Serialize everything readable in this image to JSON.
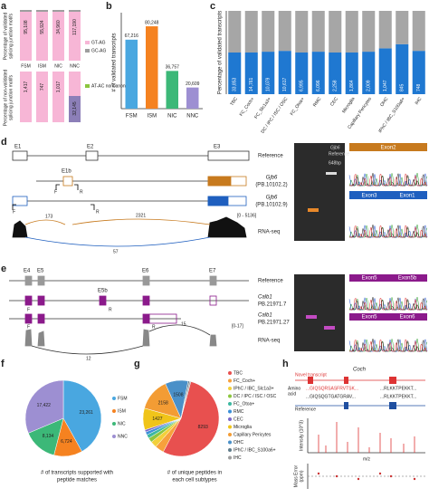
{
  "panel_labels": [
    "a",
    "b",
    "c",
    "d",
    "e",
    "f",
    "g",
    "h"
  ],
  "panel_a": {
    "categories": [
      "FSM",
      "ISM",
      "NIC",
      "NNC"
    ],
    "y_label_top": [
      "Percentage of validated",
      "splicing junction motifs"
    ],
    "y_label_bottom": [
      "Percentage of non-validated",
      "splicing junction motifs"
    ],
    "validated_labels": [
      "95,108",
      "55,924",
      "34,960",
      "117,190"
    ],
    "nonvalidated_labels": [
      "1,417",
      "747",
      "1,017",
      "32,145"
    ],
    "legend_top": [
      "GT-AG",
      "GC-AG"
    ],
    "legend_bottom": [
      "AT-AC noncanonical"
    ]
  },
  "chart_data": [
    {
      "type": "bar",
      "y_label": "# of validated transcripts",
      "categories": [
        "FSM",
        "ISM",
        "NIC",
        "NNC"
      ],
      "values": [
        67216,
        80248,
        36757,
        20609
      ],
      "value_labels": [
        "67,216",
        "80,248",
        "36,757",
        "20,609"
      ],
      "colors": [
        "#49a7e0",
        "#f58220",
        "#3cb878",
        "#9d8fd2"
      ],
      "ylim": [
        0,
        90000
      ]
    },
    {
      "type": "stacked_bar",
      "y_label": "Percentage of validated transcripts",
      "categories": [
        "TBC",
        "FC_Coch+",
        "FC_Slc1a3+",
        "DC / IPC / ISC / OSC",
        "FC_Otoa+",
        "RMC",
        "CEC",
        "Microglia",
        "Capillary Pericytes",
        "OHC",
        "IPhC / IBC_S100a6+",
        "IHC"
      ],
      "series": [
        {
          "name": "validated",
          "color": "#1f78d1",
          "values": [
            50,
            50,
            51,
            52,
            50,
            51,
            50,
            50,
            51,
            55,
            60,
            52
          ]
        },
        {
          "name": "non-validated",
          "color": "#a6a6a6",
          "values": [
            50,
            50,
            49,
            48,
            50,
            49,
            50,
            50,
            49,
            45,
            40,
            48
          ]
        }
      ],
      "annotations": [
        "33,853",
        "14,761",
        "10,079",
        "10,617",
        "6,995",
        "6,096",
        "2,258",
        "1,864",
        "2,009",
        "1,047",
        "845",
        "748"
      ],
      "ylim": [
        0,
        100
      ]
    },
    {
      "type": "pie",
      "title": [
        "# of transcripts supported with",
        "peptide matches"
      ],
      "categories": [
        "FSM",
        "ISM",
        "NIC",
        "NNC"
      ],
      "values": [
        23261,
        6724,
        8134,
        17422
      ],
      "value_labels": [
        "23,261",
        "6,724",
        "8,134",
        "17,422"
      ],
      "colors": [
        "#49a7e0",
        "#f58220",
        "#3cb878",
        "#9d8fd2"
      ]
    },
    {
      "type": "pie",
      "title": [
        "# of unique peptides in",
        "each cell subtypes"
      ],
      "categories": [
        "TBC",
        "FC_Coch+",
        "IPhC / IBC_Slc1a3+",
        "DC / IPC / ISC / OSC",
        "FC_Otoa+",
        "RMC",
        "CEC",
        "Microglia",
        "Capillary Pericytes",
        "OHC",
        "IPhC / IBC_S100a6+",
        "IHC"
      ],
      "values": [
        8293,
        588,
        416,
        300,
        250,
        200,
        150,
        1427,
        2158,
        1508,
        100,
        80
      ],
      "value_labels": [
        "8293",
        null,
        null,
        null,
        null,
        null,
        null,
        "1427",
        "2158",
        "1508",
        null,
        null
      ],
      "colors": [
        "#e8504f",
        "#f7a13c",
        "#f2d03b",
        "#8cc63f",
        "#3cb8a0",
        "#3a8fd8",
        "#7b68c8",
        "#f0c419",
        "#f39c34",
        "#4a90c8",
        "#607d8b",
        "#9e9e9e"
      ]
    }
  ],
  "panel_d": {
    "exons": [
      "E1",
      "E2",
      "E3",
      "E1b"
    ],
    "reference": "Reference",
    "primers": [
      "F",
      "R"
    ],
    "gene": "Gjb6",
    "iso1": "(PB.10102.2)",
    "iso2": "(PB.10102.9)",
    "junctions": [
      "173",
      "2321",
      "57"
    ],
    "range": "[0 - 5136]",
    "rnaseq": "RNA-seq",
    "gel": [
      "Gjb6",
      "Reference",
      "648bp"
    ],
    "seq": [
      "Exon2",
      "Exon3",
      "Exon1"
    ]
  },
  "panel_e": {
    "exons": [
      "E4",
      "E5",
      "E6",
      "E7",
      "E5b"
    ],
    "reference": "Reference",
    "primers": [
      "F",
      "R"
    ],
    "iso1": [
      "Calb1",
      "PB.21971.7"
    ],
    "iso2": [
      "Calb1",
      "PB.21971.27"
    ],
    "junctions": [
      "12",
      "15"
    ],
    "range": "[0-17]",
    "rnaseq": "RNA-seq",
    "seq": [
      "Exon5",
      "Exon5b",
      "Exon6"
    ]
  },
  "panel_h": {
    "gene": "Coch",
    "novel": "Novel transcript",
    "reference": "Reference",
    "aa": [
      "Amino",
      "acid"
    ],
    "seq1": "...GIQSQRSASFRVTSK...",
    "seq2": "...RLKKTPEKKT...",
    "seq3": "...GIQSQGTGATGRAV...",
    "y_label": "Intensity (10^3)",
    "x_label": "m/z",
    "err_label": [
      "Mass Error",
      "(ppm)"
    ]
  }
}
